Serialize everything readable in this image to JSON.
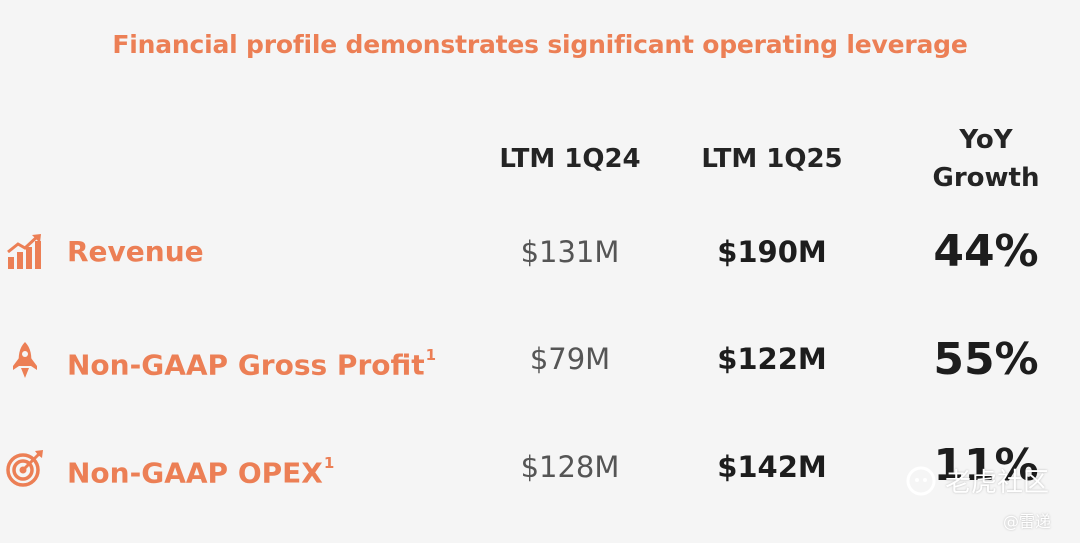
{
  "title": "Financial profile demonstrates significant operating leverage",
  "columns": [
    "LTM 1Q24",
    "LTM 1Q25",
    "YoY",
    "Growth"
  ],
  "rows": [
    {
      "label": "Revenue",
      "sup": "",
      "icon": "bar-chart-growth-icon",
      "ltm_1q24": "$131M",
      "ltm_1q25": "$190M",
      "yoy": "44%"
    },
    {
      "label": "Non-GAAP Gross Profit",
      "sup": "1",
      "icon": "rocket-icon",
      "ltm_1q24": "$79M",
      "ltm_1q25": "$122M",
      "yoy": "55%"
    },
    {
      "label": "Non-GAAP OPEX",
      "sup": "1",
      "icon": "target-icon",
      "ltm_1q24": "$128M",
      "ltm_1q25": "$142M",
      "yoy": "11%"
    }
  ],
  "watermark": {
    "main": "老虎社区",
    "handle": "@雷递"
  },
  "colors": {
    "accent": "#ec7f55",
    "text": "#1d1d1d",
    "muted": "#555555",
    "background": "#f5f5f5"
  }
}
